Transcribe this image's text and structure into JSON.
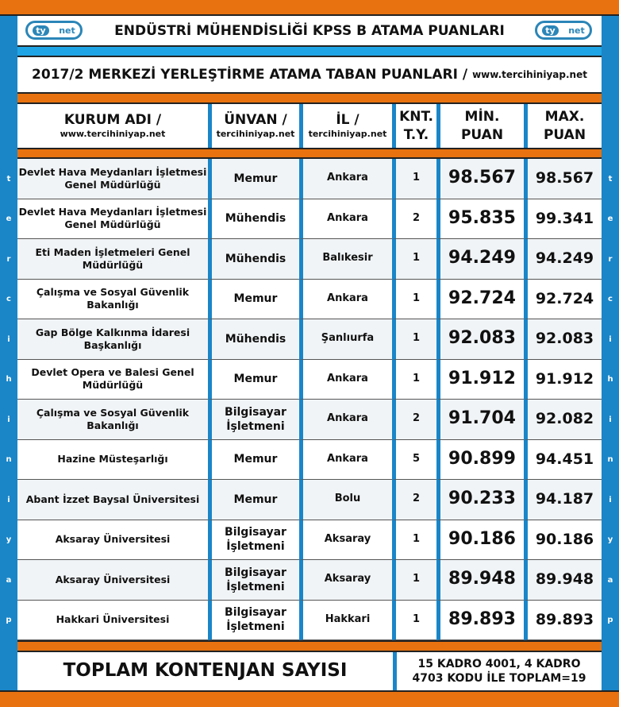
{
  "logo_text": [
    "ty",
    "net"
  ],
  "title": "ENDÜSTRİ MÜHENDİSLİĞİ KPSS B ATAMA PUANLARI",
  "subtitle": "2017/2 MERKEZİ YERLEŞTİRME ATAMA TABAN PUANLARI /",
  "subtitle_site": "www.tercihiniyap.net",
  "side_letters": [
    "t",
    "e",
    "r",
    "c",
    "i",
    "h",
    "i",
    "n",
    "i",
    "y",
    "a",
    "p"
  ],
  "headers": [
    {
      "main": "KURUM ADI /",
      "sub": "www.tercihiniyap.net"
    },
    {
      "main": "ÜNVAN /",
      "sub": "tercihiniyap.net"
    },
    {
      "main": "İL /",
      "sub": "tercihiniyap.net"
    },
    {
      "main": "KNT.",
      "sub": "T.Y."
    },
    {
      "main": "MİN.",
      "sub": "PUAN"
    },
    {
      "main": "MAX.",
      "sub": "PUAN"
    }
  ],
  "rows": [
    [
      "Devlet Hava Meydanları İşletmesi Genel Müdürlüğü",
      "Memur",
      "Ankara",
      "1",
      "98.567",
      "98.567"
    ],
    [
      "Devlet Hava Meydanları İşletmesi Genel Müdürlüğü",
      "Mühendis",
      "Ankara",
      "2",
      "95.835",
      "99.341"
    ],
    [
      "Eti Maden İşletmeleri Genel Müdürlüğü",
      "Mühendis",
      "Balıkesir",
      "1",
      "94.249",
      "94.249"
    ],
    [
      "Çalışma ve Sosyal Güvenlik Bakanlığı",
      "Memur",
      "Ankara",
      "1",
      "92.724",
      "92.724"
    ],
    [
      "Gap Bölge Kalkınma İdaresi Başkanlığı",
      "Mühendis",
      "Şanlıurfa",
      "1",
      "92.083",
      "92.083"
    ],
    [
      "Devlet Opera ve Balesi Genel Müdürlüğü",
      "Memur",
      "Ankara",
      "1",
      "91.912",
      "91.912"
    ],
    [
      "Çalışma ve Sosyal Güvenlik Bakanlığı",
      "Bilgisayar İşletmeni",
      "Ankara",
      "2",
      "91.704",
      "92.082"
    ],
    [
      "Hazine Müsteşarlığı",
      "Memur",
      "Ankara",
      "5",
      "90.899",
      "94.451"
    ],
    [
      "Abant İzzet Baysal Üniversitesi",
      "Memur",
      "Bolu",
      "2",
      "90.233",
      "94.187"
    ],
    [
      "Aksaray Üniversitesi",
      "Bilgisayar İşletmeni",
      "Aksaray",
      "1",
      "90.186",
      "90.186"
    ],
    [
      "Aksaray Üniversitesi",
      "Bilgisayar İşletmeni",
      "Aksaray",
      "1",
      "89.948",
      "89.948"
    ],
    [
      "Hakkari Üniversitesi",
      "Bilgisayar İşletmeni",
      "Hakkari",
      "1",
      "89.893",
      "89.893"
    ]
  ],
  "total_label": "TOPLAM KONTENJAN SAYISI",
  "total_value_line1": "15 KADRO 4001, 4 KADRO",
  "total_value_line2": "4703 KODU İLE TOPLAM=19",
  "colors": {
    "orange": "#e8720f",
    "blue": "#1a86c8",
    "light_blue": "#1fa5e6"
  }
}
